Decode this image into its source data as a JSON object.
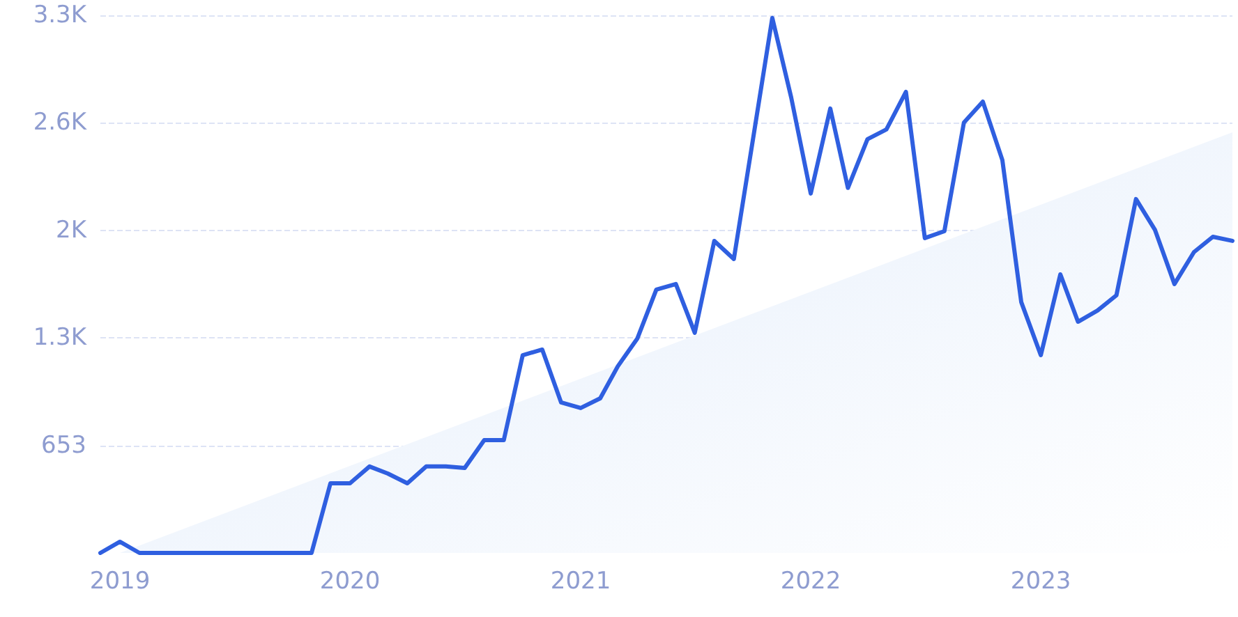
{
  "chart_data": {
    "type": "line",
    "x": [
      "2018-12",
      "2019-01",
      "2019-02",
      "2019-03",
      "2019-04",
      "2019-05",
      "2019-06",
      "2019-07",
      "2019-08",
      "2019-09",
      "2019-10",
      "2019-11",
      "2019-12",
      "2020-01",
      "2020-02",
      "2020-03",
      "2020-04",
      "2020-05",
      "2020-06",
      "2020-07",
      "2020-08",
      "2020-09",
      "2020-10",
      "2020-11",
      "2020-12",
      "2021-01",
      "2021-02",
      "2021-03",
      "2021-04",
      "2021-05",
      "2021-06",
      "2021-07",
      "2021-08",
      "2021-09",
      "2021-10",
      "2021-11",
      "2021-12",
      "2022-01",
      "2022-02",
      "2022-03",
      "2022-04",
      "2022-05",
      "2022-06",
      "2022-07",
      "2022-08",
      "2022-09",
      "2022-10",
      "2022-11",
      "2022-12",
      "2023-01",
      "2023-02",
      "2023-03",
      "2023-04",
      "2023-05",
      "2023-06",
      "2023-07",
      "2023-08",
      "2023-09",
      "2023-10",
      "2023-11"
    ],
    "series": [
      {
        "type": "area",
        "color": "#e3edfb",
        "x": [
          "2019-01",
          "2023-11"
        ],
        "values": [
          0,
          2555
        ]
      },
      {
        "color": "#2f5fe0",
        "values": [
          0,
          68,
          0,
          0,
          0,
          0,
          0,
          0,
          0,
          0,
          0,
          0,
          423,
          423,
          525,
          482,
          423,
          525,
          525,
          516,
          685,
          685,
          1201,
          1235,
          914,
          880,
          939,
          1134,
          1303,
          1599,
          1633,
          1337,
          1895,
          1785,
          2504,
          3249,
          2766,
          2183,
          2699,
          2217,
          2513,
          2572,
          2800,
          1912,
          1954,
          2614,
          2741,
          2386,
          1523,
          1201,
          1692,
          1404,
          1472,
          1565,
          2149,
          1963,
          1633,
          1827,
          1920,
          1895
        ]
      }
    ],
    "xlim": [
      "2018-12",
      "2023-11"
    ],
    "xticks": [
      "2019",
      "2020",
      "2021",
      "2022",
      "2023"
    ],
    "ylim": [
      0,
      3265
    ],
    "yticks": [
      {
        "value": 653,
        "label": "653"
      },
      {
        "value": 1306,
        "label": "1.3K"
      },
      {
        "value": 1959,
        "label": "2K"
      },
      {
        "value": 2612,
        "label": "2.6K"
      },
      {
        "value": 3265,
        "label": "3.3K"
      }
    ],
    "grid": "y",
    "marker": "none",
    "line_style": "solid"
  }
}
